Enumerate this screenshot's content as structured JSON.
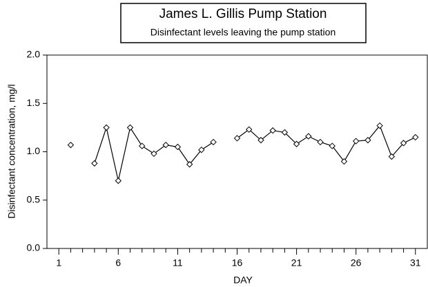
{
  "chart_data": {
    "type": "line",
    "title": "James L. Gillis Pump Station",
    "subtitle": "Disinfectant levels leaving the pump station",
    "x_label": "DAY",
    "y_label": "Disinfectant concentration, mg/l",
    "x": [
      1,
      2,
      3,
      4,
      5,
      6,
      7,
      8,
      9,
      10,
      11,
      12,
      13,
      14,
      15,
      16,
      17,
      18,
      19,
      20,
      21,
      22,
      23,
      24,
      25,
      26,
      27,
      28,
      29,
      30,
      31
    ],
    "series": [
      {
        "name": "Disinfectant concentration",
        "color": "#000000",
        "values": [
          null,
          1.07,
          null,
          0.88,
          1.25,
          0.7,
          1.25,
          1.06,
          0.98,
          1.07,
          1.05,
          0.87,
          1.02,
          1.1,
          null,
          1.14,
          1.23,
          1.12,
          1.22,
          1.2,
          1.08,
          1.16,
          1.1,
          1.06,
          0.9,
          1.11,
          1.12,
          1.27,
          0.95,
          1.09,
          1.15
        ]
      }
    ],
    "xlim": [
      0,
      32
    ],
    "xticks": [
      1,
      6,
      11,
      16,
      21,
      26,
      31
    ],
    "x_minor_ticks": [
      2,
      3,
      4,
      5,
      7,
      8,
      9,
      10,
      12,
      13,
      14,
      15,
      17,
      18,
      19,
      20,
      22,
      23,
      24,
      25,
      27,
      28,
      29,
      30
    ],
    "ylim": [
      0,
      2
    ],
    "yticks": [
      {
        "value": 0,
        "label": "0.0"
      },
      {
        "value": 0.5,
        "label": "0.5"
      },
      {
        "value": 1,
        "label": "1.0"
      },
      {
        "value": 1.5,
        "label": "1.5"
      },
      {
        "value": 2,
        "label": "2.0"
      }
    ],
    "grid": false,
    "marker": "diamond"
  }
}
